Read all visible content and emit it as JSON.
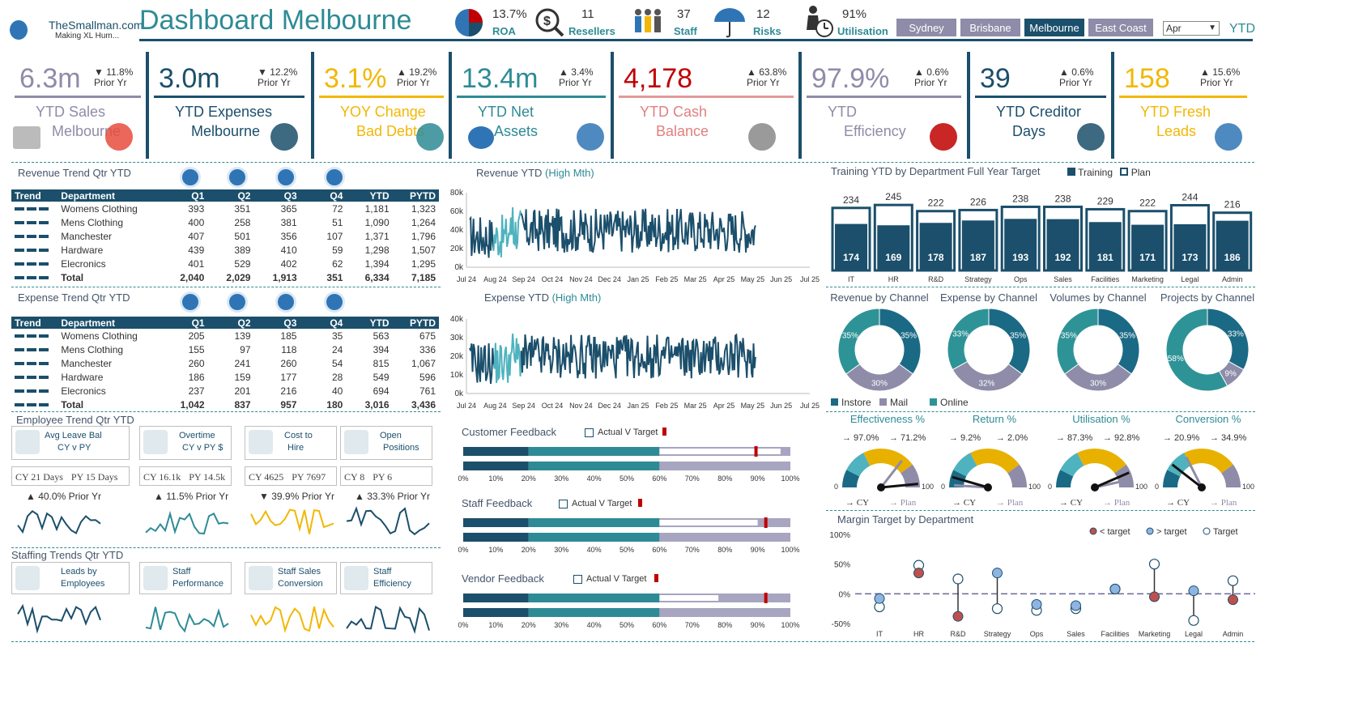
{
  "header": {
    "title": "Dashboard Melbourne",
    "logo_text": "TheSmallman.com",
    "logo_tag": "Making XL Hum...",
    "period": "YTD",
    "month_select": "Apr",
    "metrics": [
      {
        "value": "13.7%",
        "label": "ROA"
      },
      {
        "value": "11",
        "label": "Resellers"
      },
      {
        "value": "37",
        "label": "Staff"
      },
      {
        "value": "12",
        "label": "Risks"
      },
      {
        "value": "91%",
        "label": "Utilisation"
      }
    ],
    "nav": [
      "Sydney",
      "Brisbane",
      "Melbourne",
      "East Coast"
    ]
  },
  "kpis": [
    {
      "value": "6.3m",
      "change": "▼ 11.8%",
      "prior": "Prior Yr",
      "label1": "YTD Sales",
      "label2": "Melbourne",
      "color": "#8e8ca8"
    },
    {
      "value": "3.0m",
      "change": "▼ 12.2%",
      "prior": "Prior Yr",
      "label1": "YTD Expenses",
      "label2": "Melbourne",
      "color": "#1b4f6b"
    },
    {
      "value": "3.1%",
      "change": "▲ 19.2%",
      "prior": "Prior Yr",
      "label1": "YOY Change",
      "label2": "Bad Debts",
      "color": "#f2b705"
    },
    {
      "value": "13.4m",
      "change": "▲ 3.4%",
      "prior": "Prior Yr",
      "label1": "YTD Net",
      "label2": "Assets",
      "color": "#2e8b95"
    },
    {
      "value": "4,178",
      "change": "▲ 63.8%",
      "prior": "Prior Yr",
      "label1": "YTD Cash",
      "label2": "Balance",
      "color": "#c00000"
    },
    {
      "value": "97.9%",
      "change": "▲ 0.6%",
      "prior": "Prior Yr",
      "label1": "YTD",
      "label2": "Efficiency",
      "color": "#8e8ca8"
    },
    {
      "value": "39",
      "change": "▲ 0.6%",
      "prior": "Prior Yr",
      "label1": "YTD Creditor",
      "label2": "Days",
      "color": "#1b4f6b"
    },
    {
      "value": "158",
      "change": "▲ 15.6%",
      "prior": "Prior Yr",
      "label1": "YTD Fresh",
      "label2": "Leads",
      "color": "#f2b705"
    }
  ],
  "revenue_table": {
    "title": "Revenue Trend Qtr YTD",
    "headers": [
      "Trend",
      "Department",
      "Q1",
      "Q2",
      "Q3",
      "Q4",
      "YTD",
      "PYTD"
    ],
    "rows": [
      [
        "Womens Clothing",
        "393",
        "351",
        "365",
        "72",
        "1,181",
        "1,323"
      ],
      [
        "Mens Clothing",
        "400",
        "258",
        "381",
        "51",
        "1,090",
        "1,264"
      ],
      [
        "Manchester",
        "407",
        "501",
        "356",
        "107",
        "1,371",
        "1,796"
      ],
      [
        "Hardware",
        "439",
        "389",
        "410",
        "59",
        "1,298",
        "1,507"
      ],
      [
        "Elecronics",
        "401",
        "529",
        "402",
        "62",
        "1,394",
        "1,295"
      ],
      [
        "Total",
        "2,040",
        "2,029",
        "1,913",
        "351",
        "6,334",
        "7,185"
      ]
    ]
  },
  "expense_table": {
    "title": "Expense Trend Qtr YTD",
    "headers": [
      "Trend",
      "Department",
      "Q1",
      "Q2",
      "Q3",
      "Q4",
      "YTD",
      "PYTD"
    ],
    "rows": [
      [
        "Womens Clothing",
        "205",
        "139",
        "185",
        "35",
        "563",
        "675"
      ],
      [
        "Mens Clothing",
        "155",
        "97",
        "118",
        "24",
        "394",
        "336"
      ],
      [
        "Manchester",
        "260",
        "241",
        "260",
        "54",
        "815",
        "1,067"
      ],
      [
        "Hardware",
        "186",
        "159",
        "177",
        "28",
        "549",
        "596"
      ],
      [
        "Elecronics",
        "237",
        "201",
        "216",
        "40",
        "694",
        "761"
      ],
      [
        "Total",
        "1,042",
        "837",
        "957",
        "180",
        "3,016",
        "3,436"
      ]
    ]
  },
  "revenue_line": {
    "title": "Revenue YTD",
    "title_hl": "(High Mth)",
    "yticks": [
      "80k",
      "60k",
      "40k",
      "20k",
      "0k"
    ],
    "xticks": [
      "Jul 24",
      "Aug 24",
      "Sep 24",
      "Oct 24",
      "Nov 24",
      "Dec 24",
      "Jan 25",
      "Feb 25",
      "Mar 25",
      "Apr 25",
      "May 25",
      "Jun 25",
      "Jul 25"
    ]
  },
  "expense_line": {
    "title": "Expense YTD",
    "title_hl": "(High Mth)",
    "yticks": [
      "40k",
      "30k",
      "20k",
      "10k",
      "0k"
    ],
    "xticks": [
      "Jul 24",
      "Aug 24",
      "Sep 24",
      "Oct 24",
      "Nov 24",
      "Dec 24",
      "Jan 25",
      "Feb 25",
      "Mar 25",
      "Apr 25",
      "May 25",
      "Jun 25",
      "Jul 25"
    ]
  },
  "chart_data": [
    {
      "type": "bar",
      "title": "Training YTD by Department Full Year Target",
      "categories": [
        "IT",
        "HR",
        "R&D",
        "Strategy",
        "Ops",
        "Sales",
        "Facilities",
        "Marketing",
        "Legal",
        "Admin"
      ],
      "series": [
        {
          "name": "Training",
          "values": [
            174,
            169,
            178,
            187,
            193,
            192,
            181,
            171,
            173,
            186
          ]
        },
        {
          "name": "Plan",
          "values": [
            234,
            245,
            222,
            226,
            238,
            238,
            229,
            222,
            244,
            216
          ]
        }
      ],
      "ylim": [
        0,
        260
      ]
    },
    {
      "type": "pie",
      "title": "Revenue by Channel",
      "categories": [
        "Instore",
        "Mail",
        "Online"
      ],
      "values": [
        35,
        30,
        35
      ]
    },
    {
      "type": "pie",
      "title": "Expense by Channel",
      "categories": [
        "Instore",
        "Mail",
        "Online"
      ],
      "values": [
        35,
        32,
        33
      ]
    },
    {
      "type": "pie",
      "title": "Volumes by Channel",
      "categories": [
        "Instore",
        "Mail",
        "Online"
      ],
      "values": [
        35,
        30,
        35
      ]
    },
    {
      "type": "pie",
      "title": "Projects by Channel",
      "categories": [
        "Instore",
        "Mail",
        "Online"
      ],
      "values": [
        33,
        9,
        58
      ]
    },
    {
      "type": "scatter",
      "title": "Margin Target by Department",
      "categories": [
        "IT",
        "HR",
        "R&D",
        "Strategy",
        "Ops",
        "Sales",
        "Facilities",
        "Marketing",
        "Legal",
        "Admin"
      ],
      "series": [
        {
          "name": "Actual",
          "values": [
            -8,
            35,
            -38,
            35,
            -18,
            -20,
            8,
            -5,
            5,
            -10
          ]
        },
        {
          "name": "Target",
          "values": [
            -22,
            48,
            25,
            -25,
            -28,
            -25,
            8,
            50,
            -45,
            22
          ]
        }
      ],
      "ylim": [
        -50,
        100
      ],
      "yticks": [
        "100%",
        "50%",
        "0%",
        "-50%"
      ]
    },
    {
      "type": "bar",
      "title": "Customer Feedback",
      "values": [
        20,
        60,
        100
      ],
      "actual": 97,
      "target": 89
    },
    {
      "type": "bar",
      "title": "Staff Feedback",
      "values": [
        20,
        60,
        100
      ],
      "actual": 90,
      "target": 92
    },
    {
      "type": "bar",
      "title": "Vendor Feedback",
      "values": [
        20,
        60,
        100
      ],
      "actual": 78,
      "target": 92
    }
  ],
  "training": {
    "legend_training": "Training",
    "legend_plan": "Plan",
    "departments": [
      "IT",
      "HR",
      "R&D",
      "Strategy",
      "Ops",
      "Sales",
      "Facilities",
      "Marketing",
      "Legal",
      "Admin"
    ]
  },
  "channels": {
    "legend": [
      "Instore",
      "Mail",
      "Online"
    ],
    "labels": [
      [
        "35%",
        "30%",
        "35%"
      ],
      [
        "35%",
        "32%",
        "33%"
      ],
      [
        "35%",
        "30%",
        "35%"
      ],
      [
        "33%",
        "9%",
        "58%"
      ]
    ]
  },
  "gauges": [
    {
      "title": "Effectiveness %",
      "cy": "97.0%",
      "plan": "71.2%",
      "cy_v": 97,
      "plan_v": 71
    },
    {
      "title": "Return %",
      "cy": "9.2%",
      "plan": "2.0%",
      "cy_v": 9,
      "plan_v": 2
    },
    {
      "title": "Utilisation %",
      "cy": "87.3%",
      "plan": "92.8%",
      "cy_v": 87,
      "plan_v": 93
    },
    {
      "title": "Conversion %",
      "cy": "20.9%",
      "plan": "34.9%",
      "cy_v": 21,
      "plan_v": 35
    }
  ],
  "gauge_labels": {
    "zero": "0",
    "hundred": "100",
    "cy": "CY",
    "plan": "Plan"
  },
  "margin": {
    "legend_below": "< target",
    "legend_above": "> target",
    "legend_target": "Target"
  },
  "feedback": {
    "legend": "Actual V Target",
    "xticks": [
      "0%",
      "10%",
      "20%",
      "30%",
      "40%",
      "50%",
      "60%",
      "70%",
      "80%",
      "90%",
      "100%"
    ]
  },
  "employee": {
    "title": "Employee Trend Qtr YTD",
    "cards": [
      {
        "l1": "Avg Leave Bal",
        "l2": "CY v PY",
        "cy": "CY 21 Days",
        "py": "PY 15 Days",
        "change": "▲ 40.0% Prior Yr"
      },
      {
        "l1": "Overtime",
        "l2": "CY v PY $",
        "cy": "CY 16.1k",
        "py": "PY 14.5k",
        "change": "▲ 11.5% Prior Yr"
      },
      {
        "l1": "Cost to",
        "l2": "Hire",
        "cy": "CY 4625",
        "py": "PY 7697",
        "change": "▼ 39.9% Prior Yr"
      },
      {
        "l1": "Open",
        "l2": "Positions",
        "cy": "CY 8",
        "py": "PY 6",
        "change": "▲ 33.3% Prior Yr"
      }
    ]
  },
  "staffing": {
    "title": "Staffing Trends Qtr YTD",
    "cards": [
      {
        "l1": "Leads by",
        "l2": "Employees"
      },
      {
        "l1": "Staff",
        "l2": "Performance"
      },
      {
        "l1": "Staff Sales",
        "l2": "Conversion"
      },
      {
        "l1": "Staff",
        "l2": "Efficiency"
      }
    ]
  },
  "colors": {
    "navy": "#1b4f6b",
    "teal": "#2e8b95",
    "lavender": "#8e8ca8",
    "gold": "#f2b705",
    "red": "#c00000"
  }
}
